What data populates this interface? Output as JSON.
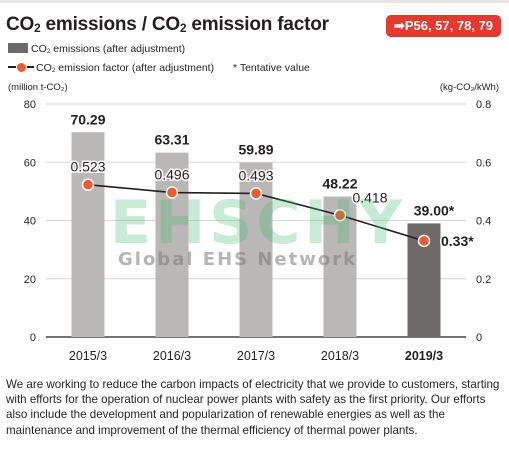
{
  "header": {
    "title_a": "CO",
    "title_b": "2",
    "title_c": " emissions / CO",
    "title_d": "2",
    "title_e": " emission factor",
    "page_ref": "➡P56, 57, 78, 79"
  },
  "legend": {
    "bars_a": "CO",
    "bars_b": "2",
    "bars_c": " emissions (after adjustment)",
    "line_a": "CO",
    "line_b": "2",
    "line_c": " emission factor (after adjustment)",
    "note": "* Tentative value"
  },
  "watermark": {
    "main": "EHSCHY",
    "sub": "Global EHS Network"
  },
  "colors": {
    "bar": "#bab8b7",
    "bar_highlight": "#6d6a69",
    "line": "#231f20",
    "marker": "#ef5a2e",
    "accent": "#e8372c"
  },
  "chart_data": {
    "type": "bar",
    "categories": [
      "2015/3",
      "2016/3",
      "2017/3",
      "2018/3",
      "2019/3"
    ],
    "series": [
      {
        "name": "CO2 emissions (after adjustment)",
        "axis": "left",
        "values": [
          70.29,
          63.31,
          59.89,
          48.22,
          39.0
        ],
        "labels": [
          "70.29",
          "63.31",
          "59.89",
          "48.22",
          "39.00*"
        ]
      },
      {
        "name": "CO2 emission factor (after adjustment)",
        "axis": "right",
        "type": "line",
        "values": [
          0.523,
          0.496,
          0.493,
          0.418,
          0.33
        ],
        "labels": [
          "0.523",
          "0.496",
          "0.493",
          "0.418",
          "0.33*"
        ]
      }
    ],
    "ylabel_left": "(million t-CO₂)",
    "ylabel_right": "(kg-CO₂/kWh)",
    "ylim_left": [
      0,
      80
    ],
    "ylim_right": [
      0,
      0.8
    ],
    "yticks_left": [
      "0",
      "20",
      "40",
      "60",
      "80"
    ],
    "yticks_right": [
      "0",
      "0.2",
      "0.4",
      "0.6",
      "0.8"
    ],
    "highlight_category": "2019/3",
    "grid": true
  },
  "body_text": "We are working to reduce the carbon impacts of electricity that we provide to customers, starting with efforts for the operation of nuclear power plants with safety as the first priority. Our efforts also include the development and popularization of renewable energies as well as the maintenance and improvement of the thermal efficiency of thermal power plants."
}
